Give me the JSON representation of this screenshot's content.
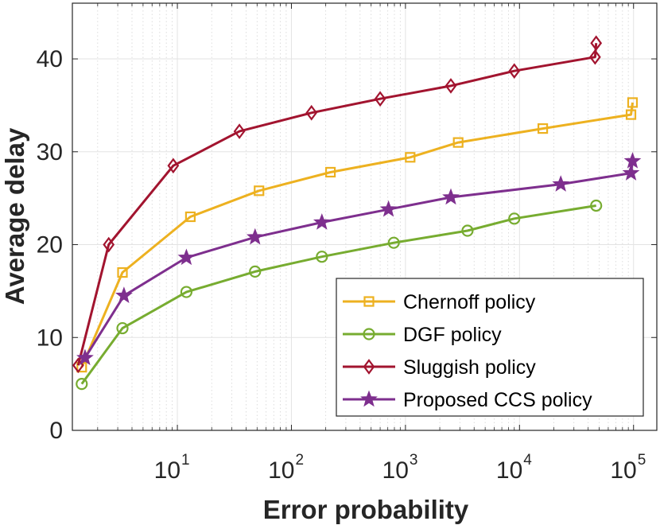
{
  "chart_data": {
    "type": "line",
    "title": "",
    "xlabel": "Error probability",
    "ylabel": "Average delay",
    "x_scale": "log",
    "xlim": [
      1.2,
      160000
    ],
    "ylim": [
      0,
      46
    ],
    "xticks": [
      {
        "base": "10",
        "exp": "1"
      },
      {
        "base": "10",
        "exp": "2"
      },
      {
        "base": "10",
        "exp": "3"
      },
      {
        "base": "10",
        "exp": "4"
      },
      {
        "base": "10",
        "exp": "5"
      }
    ],
    "yticks": [
      "0",
      "10",
      "20",
      "30",
      "40"
    ],
    "grid": true,
    "legend_location": "lower-right",
    "series": [
      {
        "name": "Chernoff policy",
        "color": "#EDB120",
        "marker": "square",
        "x": [
          1.45,
          3.3,
          13,
          52,
          220,
          1100,
          2900,
          16000,
          95000,
          98000
        ],
        "y": [
          6.8,
          17.0,
          23.0,
          25.8,
          27.8,
          29.4,
          31.0,
          32.5,
          34.0,
          35.3
        ]
      },
      {
        "name": "DGF policy",
        "color": "#77AC30",
        "marker": "circle",
        "x": [
          1.45,
          3.3,
          12,
          48,
          185,
          790,
          3500,
          9000,
          47000
        ],
        "y": [
          5.0,
          11.0,
          14.9,
          17.1,
          18.7,
          20.2,
          21.5,
          22.8,
          24.2
        ]
      },
      {
        "name": "Sluggish policy",
        "color": "#A2142F",
        "marker": "diamond",
        "x": [
          1.35,
          2.5,
          9.2,
          35,
          150,
          600,
          2500,
          9000,
          46000,
          47000
        ],
        "y": [
          7.0,
          20.0,
          28.5,
          32.2,
          34.2,
          35.7,
          37.1,
          38.7,
          40.2,
          41.7
        ]
      },
      {
        "name": "Proposed CCS policy",
        "color": "#7E2F8E",
        "marker": "star",
        "x": [
          1.55,
          3.4,
          12,
          48,
          185,
          710,
          2500,
          23000,
          95000,
          98000
        ],
        "y": [
          7.8,
          14.5,
          18.6,
          20.8,
          22.4,
          23.8,
          25.1,
          26.5,
          27.7,
          29.0
        ]
      }
    ]
  }
}
